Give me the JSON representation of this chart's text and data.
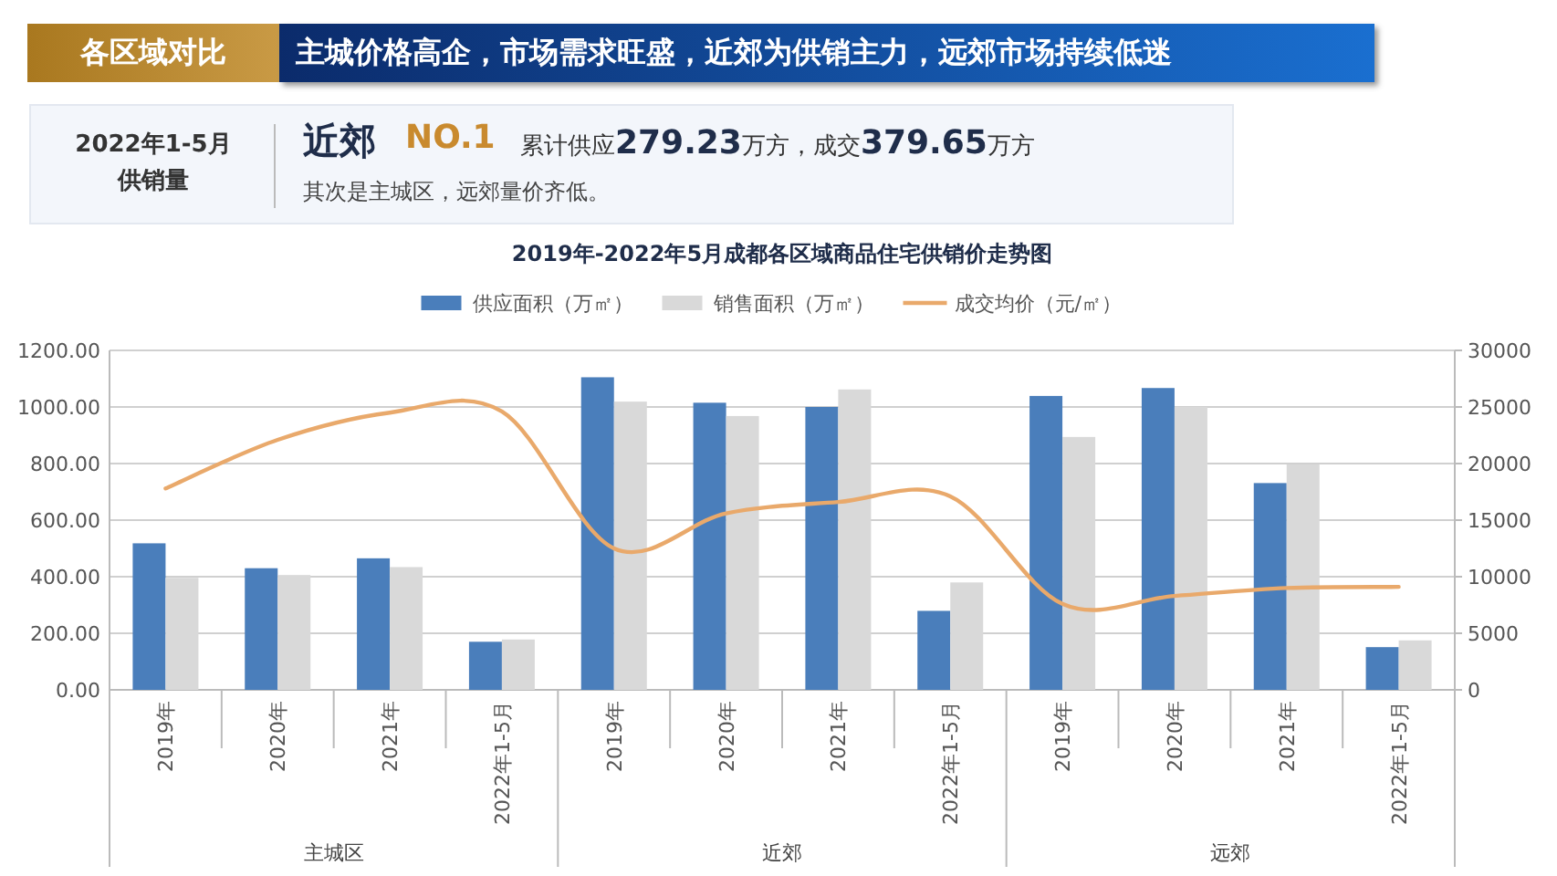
{
  "chart_data": [
    {
      "type": "other",
      "annotations": [
        "各区域对比",
        "主城价格高企，市场需求旺盛，近郊为供销主力，远郊市场持续低迷",
        "2022年1-5月",
        "供销量",
        "近郊",
        "NO.1",
        "累计供应**279.23**万方，成交**379.65**万方",
        "其次是主城区，远郊量价齐低。"
      ]
    },
    {
      "type": "bar",
      "title": "2019年-2022年5月成都各区域商品住宅供销价走势图",
      "categories": [
        "2019年",
        "2020年",
        "2021年",
        "2022年1-5月",
        "2019年",
        "2020年",
        "2021年",
        "2022年1-5月",
        "2019年",
        "2020年",
        "2021年",
        "2022年1-5月"
      ],
      "annotations": [
        "主城区",
        "近郊",
        "远郊"
      ],
      "series": [
        {
          "name": "供应面积（万㎡）",
          "color": "#4a7ebb",
          "values": [
            518,
            430,
            465,
            170,
            1105,
            1015,
            1000,
            279.23,
            1039,
            1067,
            731,
            151
          ]
        },
        {
          "name": "销售面积（万㎡）",
          "color": "#d9d9d9",
          "values": [
            396,
            406,
            434,
            178,
            1019,
            968,
            1062,
            379.65,
            894,
            1000,
            797,
            175
          ]
        },
        {
          "name": "成交均价（元/㎡）",
          "color": "#e9a96b",
          "type": "line",
          "axis": "y2",
          "values": [
            17800,
            22100,
            24500,
            24600,
            12500,
            15600,
            16600,
            17100,
            7600,
            8300,
            9000,
            9100
          ]
        }
      ],
      "ylim": [
        0,
        1200
      ],
      "yticks": [
        {
          "value": 0,
          "label": "0.00"
        },
        {
          "value": 200,
          "label": "200.00"
        },
        {
          "value": 400,
          "label": "400.00"
        },
        {
          "value": 600,
          "label": "600.00"
        },
        {
          "value": 800,
          "label": "800.00"
        },
        {
          "value": 1000,
          "label": "1000.00"
        },
        {
          "value": 1200,
          "label": "1200.00"
        }
      ],
      "y2lim": [
        0,
        30000
      ],
      "y2ticks": [
        0,
        5000,
        10000,
        15000,
        20000,
        25000,
        30000
      ],
      "grid": "y",
      "legend": "top"
    }
  ]
}
